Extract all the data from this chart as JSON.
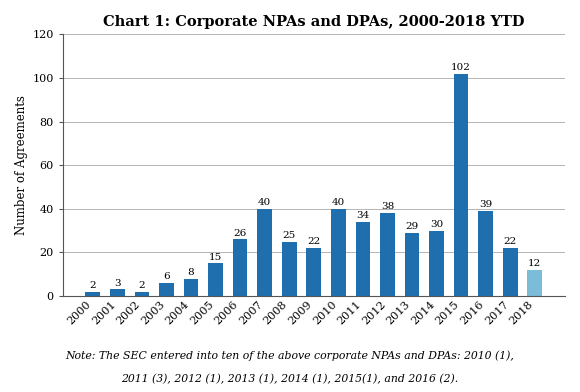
{
  "title": "Chart 1: Corporate NPAs and DPAs, 2000-2018 YTD",
  "ylabel": "Number of Agreements",
  "years": [
    2000,
    2001,
    2002,
    2003,
    2004,
    2005,
    2006,
    2007,
    2008,
    2009,
    2010,
    2011,
    2012,
    2013,
    2014,
    2015,
    2016,
    2017,
    2018
  ],
  "values": [
    2,
    3,
    2,
    6,
    8,
    15,
    26,
    40,
    25,
    22,
    40,
    34,
    38,
    29,
    30,
    102,
    39,
    22,
    12
  ],
  "bar_color_default": "#1F6FAF",
  "bar_color_2018": "#7BBCD8",
  "ylim": [
    0,
    120
  ],
  "yticks": [
    0,
    20,
    40,
    60,
    80,
    100,
    120
  ],
  "note_line1": "Note: The SEC entered into ten of the above corporate NPAs and DPAs: 2010 (1),",
  "note_line2": "2011 (3), 2012 (1), 2013 (1), 2014 (1), 2015(1), and 2016 (2).",
  "label_fontsize": 7.5,
  "title_fontsize": 10.5,
  "axis_label_fontsize": 8.5,
  "note_fontsize": 7.8,
  "tick_fontsize": 8.0,
  "bar_width": 0.6
}
